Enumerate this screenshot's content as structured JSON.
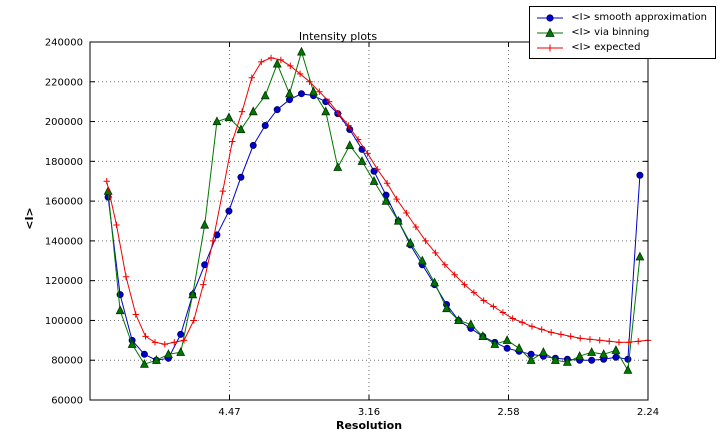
{
  "figure": {
    "background": "#ffffff"
  },
  "chart_data": {
    "type": "line",
    "title": "Intensity plots",
    "xlabel": "Resolution",
    "ylabel": "<I>",
    "grid": true,
    "grid_color": "#777777",
    "frame_color": "#000000",
    "legend_position": "upper-right",
    "x_axis": {
      "range": [
        0.0,
        0.2
      ],
      "tick_positions": [
        0.05,
        0.1,
        0.15,
        0.2
      ],
      "tick_labels": [
        "4.47",
        "3.16",
        "2.58",
        "2.24"
      ]
    },
    "y_axis": {
      "range": [
        60000,
        240000
      ],
      "tick_positions": [
        60000,
        80000,
        100000,
        120000,
        140000,
        160000,
        180000,
        200000,
        220000,
        240000
      ],
      "tick_labels": [
        "60000",
        "80000",
        "100000",
        "120000",
        "140000",
        "160000",
        "180000",
        "200000",
        "220000",
        "240000"
      ]
    },
    "series": [
      {
        "name": "<I> smooth approximation",
        "color": "#0000cc",
        "edge_color": "#000066",
        "marker": "circle",
        "x": [
          0.0065,
          0.0108,
          0.0151,
          0.0195,
          0.0238,
          0.0281,
          0.0325,
          0.0368,
          0.0411,
          0.0455,
          0.0498,
          0.0541,
          0.0585,
          0.0628,
          0.0671,
          0.0715,
          0.0758,
          0.0801,
          0.0845,
          0.0888,
          0.0931,
          0.0975,
          0.1018,
          0.1061,
          0.1105,
          0.1148,
          0.1191,
          0.1235,
          0.1278,
          0.1321,
          0.1365,
          0.1408,
          0.1451,
          0.1495,
          0.1538,
          0.1581,
          0.1625,
          0.1668,
          0.1711,
          0.1755,
          0.1798,
          0.1841,
          0.1885,
          0.1928,
          0.1971
        ],
        "y": [
          162000,
          113000,
          90000,
          83000,
          80000,
          81000,
          93000,
          113000,
          128000,
          143000,
          155000,
          172000,
          188000,
          198000,
          206000,
          211000,
          214000,
          213000,
          210000,
          204000,
          196000,
          186000,
          175000,
          163000,
          150000,
          138000,
          128000,
          118000,
          108000,
          100000,
          96000,
          92000,
          89000,
          86000,
          84500,
          83000,
          82000,
          81000,
          80500,
          80000,
          80000,
          80500,
          81500,
          80500,
          173000
        ]
      },
      {
        "name": "<I> via binning",
        "color": "#007700",
        "edge_color": "#003300",
        "marker": "triangle",
        "x": [
          0.0065,
          0.0108,
          0.0151,
          0.0195,
          0.0238,
          0.0281,
          0.0325,
          0.0368,
          0.0411,
          0.0455,
          0.0498,
          0.0541,
          0.0585,
          0.0628,
          0.0671,
          0.0715,
          0.0758,
          0.0801,
          0.0845,
          0.0888,
          0.0931,
          0.0975,
          0.1018,
          0.1061,
          0.1105,
          0.1148,
          0.1191,
          0.1235,
          0.1278,
          0.1321,
          0.1365,
          0.1408,
          0.1451,
          0.1495,
          0.1538,
          0.1581,
          0.1625,
          0.1668,
          0.1711,
          0.1755,
          0.1798,
          0.1841,
          0.1885,
          0.1928,
          0.1971
        ],
        "y": [
          165000,
          105000,
          88000,
          78000,
          80000,
          83000,
          84000,
          113000,
          148000,
          200000,
          202000,
          196000,
          205000,
          213000,
          229000,
          214000,
          235000,
          215000,
          205000,
          177000,
          188000,
          180000,
          170000,
          160000,
          150000,
          139000,
          130000,
          119000,
          106000,
          100000,
          98000,
          92000,
          88000,
          90000,
          86000,
          80000,
          84000,
          80000,
          79000,
          82000,
          84000,
          83000,
          85000,
          75000,
          132000
        ]
      },
      {
        "name": "<I> expected",
        "color": "#ee0000",
        "edge_color": "#ee0000",
        "marker": "plus",
        "x": [
          0.006,
          0.0095,
          0.0129,
          0.0164,
          0.0199,
          0.0233,
          0.0268,
          0.0302,
          0.0337,
          0.0372,
          0.0406,
          0.0441,
          0.0476,
          0.051,
          0.0545,
          0.058,
          0.0614,
          0.0649,
          0.0684,
          0.0718,
          0.0753,
          0.0787,
          0.0822,
          0.0857,
          0.0891,
          0.0926,
          0.0961,
          0.0995,
          0.103,
          0.1065,
          0.1099,
          0.1134,
          0.1168,
          0.1203,
          0.1238,
          0.1272,
          0.1307,
          0.1342,
          0.1376,
          0.1411,
          0.1446,
          0.148,
          0.1515,
          0.1549,
          0.1584,
          0.1619,
          0.1653,
          0.1688,
          0.1723,
          0.1757,
          0.1792,
          0.1827,
          0.1861,
          0.1896,
          0.1931,
          0.1965,
          0.2
        ],
        "y": [
          170000,
          148000,
          122000,
          103000,
          92000,
          89000,
          88000,
          89000,
          90000,
          100000,
          118000,
          140000,
          165000,
          190000,
          205000,
          222000,
          230000,
          232000,
          231000,
          228000,
          224000,
          220000,
          215000,
          210000,
          204000,
          198000,
          191000,
          184000,
          176000,
          169000,
          161000,
          154000,
          147000,
          140000,
          134000,
          128000,
          123000,
          118000,
          114000,
          110000,
          107000,
          104000,
          101000,
          99000,
          97000,
          95500,
          94000,
          93000,
          92000,
          91000,
          90500,
          90000,
          89500,
          89000,
          89000,
          89500,
          90000
        ]
      }
    ]
  }
}
